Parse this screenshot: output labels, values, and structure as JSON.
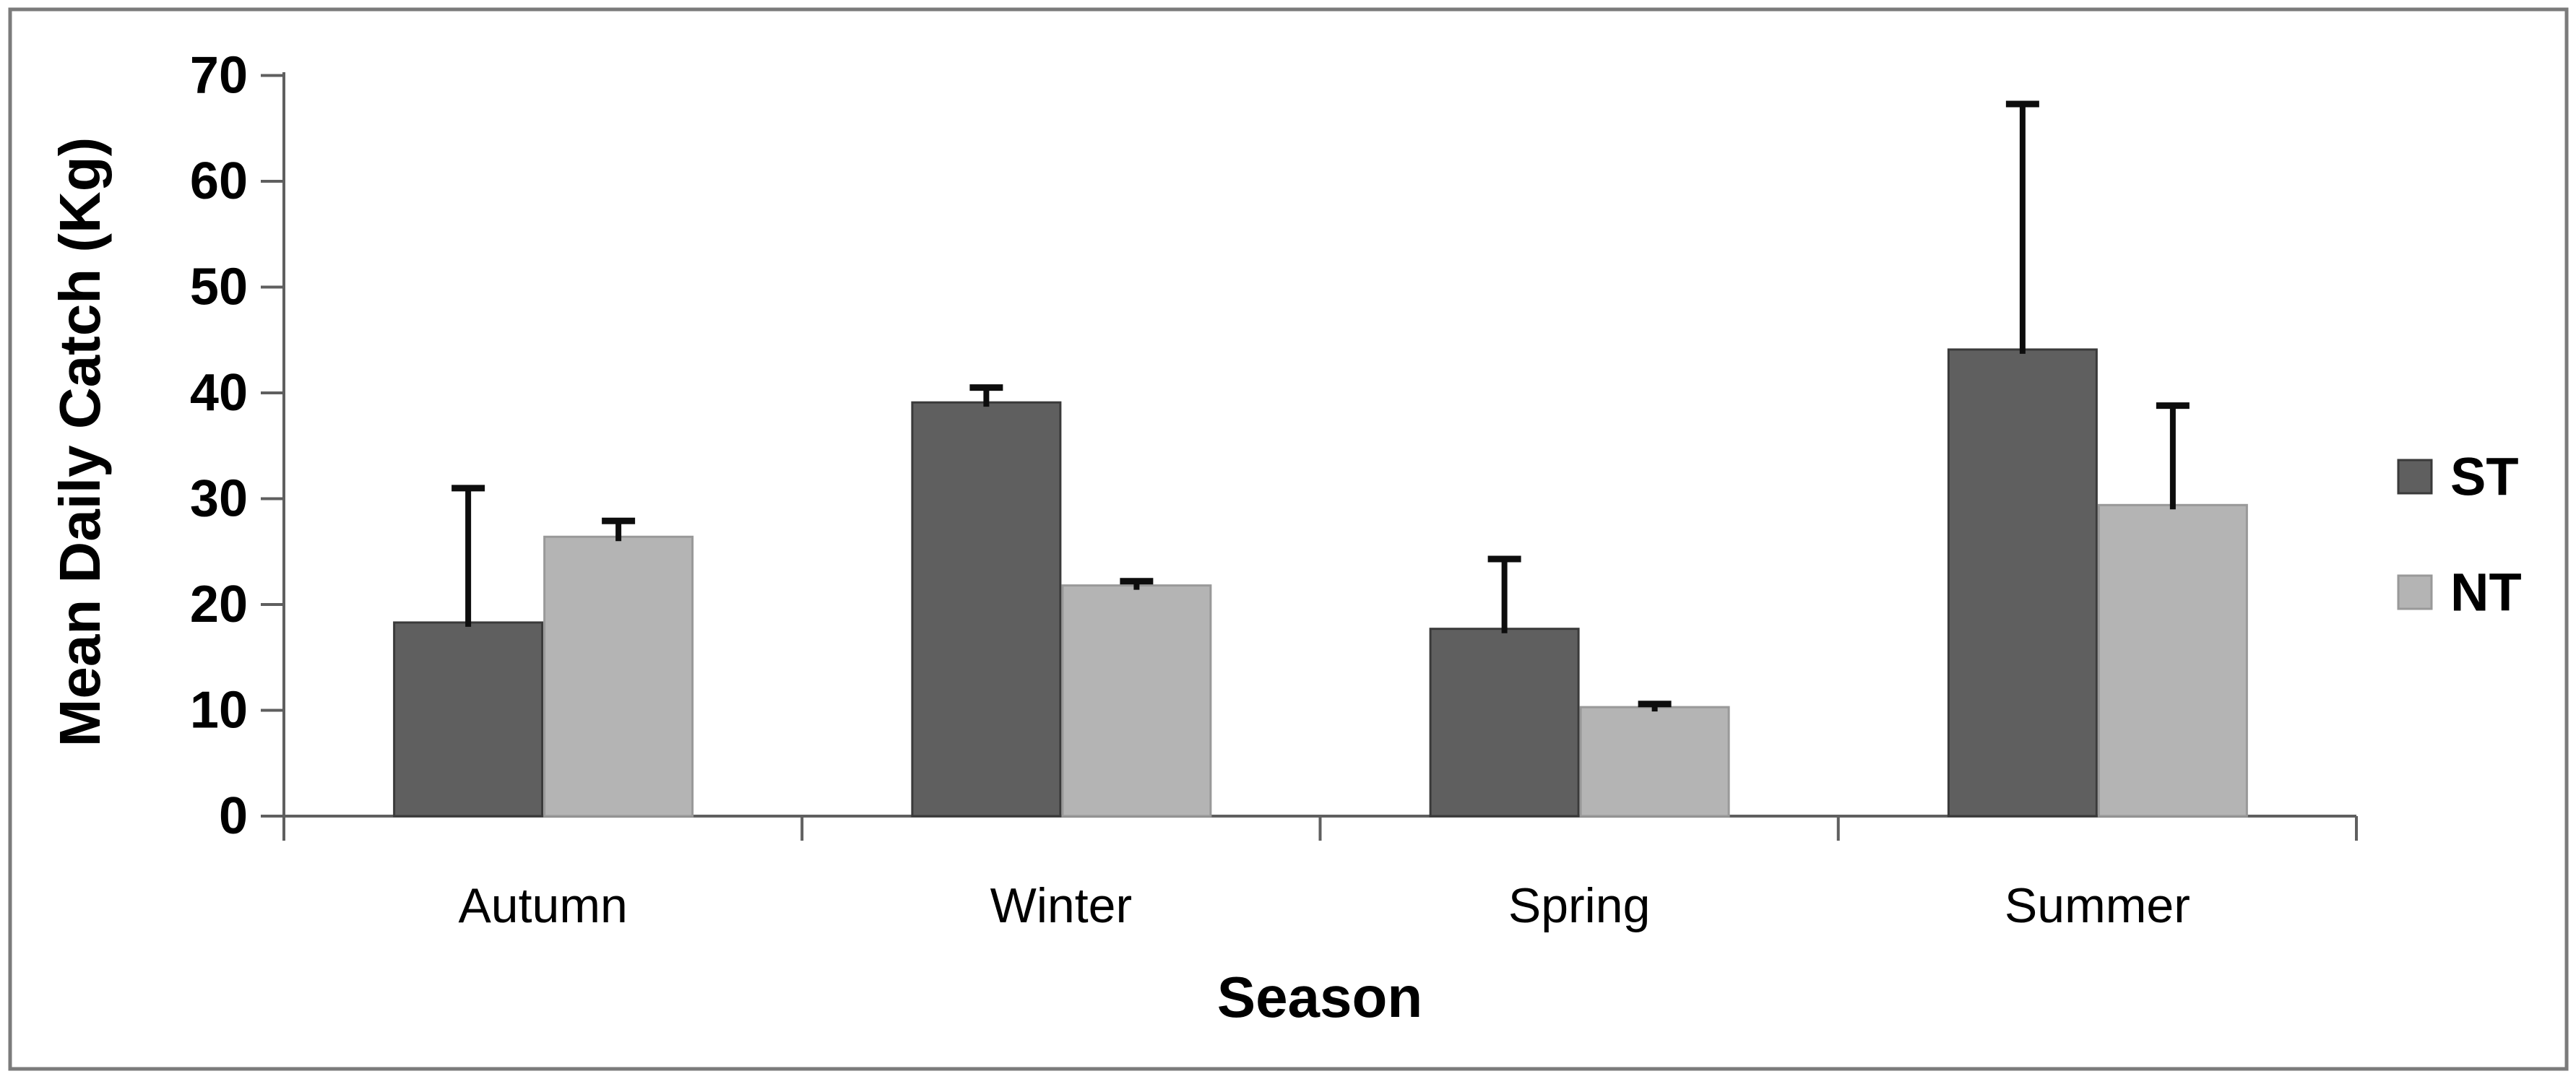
{
  "figure": {
    "background": "#ffffff",
    "frame_color": "#7b7b7b",
    "axis_color": "#5f5f5f",
    "error_bar_color": "#0d0d0d",
    "text_color": "#000000"
  },
  "chart_data": {
    "type": "bar",
    "title": "",
    "xlabel": "Season",
    "ylabel": "Mean Daily Catch (Kg)",
    "categories": [
      "Autumn",
      "Winter",
      "Spring",
      "Summer"
    ],
    "series": [
      {
        "name": "ST",
        "color": "#5f5f5f",
        "border_color": "#3a3a3a",
        "values": [
          18.3,
          39.1,
          17.7,
          44.1
        ],
        "error_upper": [
          31.0,
          40.5,
          24.3,
          67.3
        ]
      },
      {
        "name": "NT",
        "color": "#b4b4b4",
        "border_color": "#999999",
        "values": [
          26.4,
          21.8,
          10.3,
          29.4
        ],
        "error_upper": [
          27.9,
          22.2,
          10.6,
          38.8
        ]
      }
    ],
    "ylim": [
      0,
      70
    ],
    "ytick_step": 10,
    "grid": false,
    "legend_position": "right",
    "error_bars": "upper-only"
  }
}
